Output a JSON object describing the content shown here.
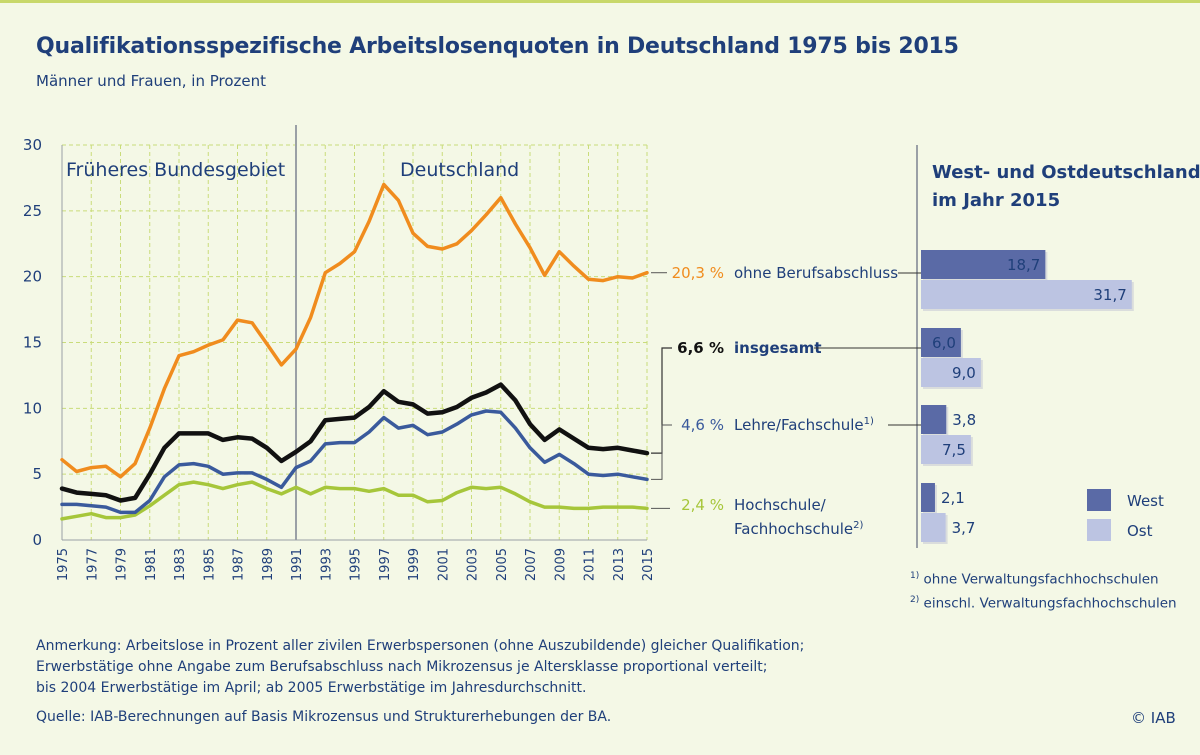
{
  "title": "Qualifikationsspezifische Arbeitslosenquoten in Deutschland 1975 bis 2015",
  "subtitle": "Männer und Frauen, in Prozent",
  "region_labels": {
    "west": "Früheres Bundesgebiet",
    "unified": "Deutschland"
  },
  "right_panel_title": [
    "West- und Ostdeutschland",
    "im Jahr 2015"
  ],
  "colors": {
    "ohne": "#f08c1e",
    "insgesamt": "#111111",
    "lehre": "#3a5a9c",
    "hochschule": "#a6c63a",
    "west": "#5a6aa6",
    "ost": "#bcc4e2",
    "grid": "#c9dc7a",
    "text": "#1f3f7a"
  },
  "chart_data": [
    {
      "type": "line",
      "xlabel": "",
      "ylabel": "",
      "ylim": [
        0,
        30
      ],
      "yticks": [
        0,
        5,
        10,
        15,
        20,
        25,
        30
      ],
      "x": [
        1975,
        1976,
        1977,
        1978,
        1979,
        1980,
        1981,
        1982,
        1983,
        1984,
        1985,
        1986,
        1987,
        1988,
        1989,
        1990,
        1991,
        1992,
        1993,
        1994,
        1995,
        1996,
        1997,
        1998,
        1999,
        2000,
        2001,
        2002,
        2003,
        2004,
        2005,
        2006,
        2007,
        2008,
        2009,
        2010,
        2011,
        2012,
        2013,
        2014,
        2015
      ],
      "xtick_labels": [
        "1975",
        "1977",
        "1979",
        "1981",
        "1983",
        "1985",
        "1987",
        "1989",
        "1991",
        "1993",
        "1995",
        "1997",
        "1999",
        "2001",
        "2003",
        "2005",
        "2007",
        "2009",
        "2011",
        "2013",
        "2015"
      ],
      "grid": true,
      "series": [
        {
          "name": "ohne Berufsabschluss",
          "end_label": "20,3 %",
          "values": [
            6.1,
            5.2,
            5.5,
            5.6,
            4.8,
            5.8,
            8.5,
            11.5,
            14.0,
            14.3,
            14.8,
            15.2,
            16.7,
            16.5,
            14.9,
            13.3,
            14.5,
            16.9,
            20.3,
            21.0,
            21.9,
            24.2,
            27.0,
            25.8,
            23.3,
            22.3,
            22.1,
            22.5,
            23.5,
            24.7,
            26.0,
            24.0,
            22.2,
            20.1,
            21.9,
            20.8,
            19.8,
            19.7,
            20.0,
            19.9,
            20.3
          ]
        },
        {
          "name": "insgesamt",
          "end_label": "6,6 %",
          "values": [
            3.9,
            3.6,
            3.5,
            3.4,
            3.0,
            3.2,
            5.0,
            7.0,
            8.1,
            8.1,
            8.1,
            7.6,
            7.8,
            7.7,
            7.0,
            6.0,
            6.7,
            7.5,
            9.1,
            9.2,
            9.3,
            10.1,
            11.3,
            10.5,
            10.3,
            9.6,
            9.7,
            10.1,
            10.8,
            11.2,
            11.8,
            10.6,
            8.8,
            7.6,
            8.4,
            7.7,
            7.0,
            6.9,
            7.0,
            6.8,
            6.6
          ]
        },
        {
          "name": "Lehre/Fachschule",
          "end_label": "4,6 %",
          "values": [
            2.7,
            2.7,
            2.6,
            2.5,
            2.1,
            2.1,
            3.0,
            4.8,
            5.7,
            5.8,
            5.6,
            5.0,
            5.1,
            5.1,
            4.6,
            4.0,
            5.5,
            6.0,
            7.3,
            7.4,
            7.4,
            8.2,
            9.3,
            8.5,
            8.7,
            8.0,
            8.2,
            8.8,
            9.5,
            9.8,
            9.7,
            8.5,
            7.0,
            5.9,
            6.5,
            5.8,
            5.0,
            4.9,
            5.0,
            4.8,
            4.6
          ]
        },
        {
          "name": "Hochschule/ Fachhochschule",
          "end_label": "2,4 %",
          "values": [
            1.6,
            1.8,
            2.0,
            1.7,
            1.7,
            1.9,
            2.6,
            3.4,
            4.2,
            4.4,
            4.2,
            3.9,
            4.2,
            4.4,
            3.9,
            3.5,
            4.0,
            3.5,
            4.0,
            3.9,
            3.9,
            3.7,
            3.9,
            3.4,
            3.4,
            2.9,
            3.0,
            3.6,
            4.0,
            3.9,
            4.0,
            3.5,
            2.9,
            2.5,
            2.5,
            2.4,
            2.4,
            2.5,
            2.5,
            2.5,
            2.4
          ]
        }
      ],
      "series_labels": [
        {
          "key": "ohne",
          "value_label": "20,3 %",
          "text": "ohne Berufsabschluss",
          "sup": ""
        },
        {
          "key": "insgesamt",
          "value_label": "6,6 %",
          "text": "insgesamt",
          "sup": ""
        },
        {
          "key": "lehre",
          "value_label": "4,6 %",
          "text": "Lehre/Fachschule",
          "sup": "1)"
        },
        {
          "key": "hochschule",
          "value_label": "2,4 %",
          "text": "Hochschule/",
          "text2": "Fachhochschule",
          "sup": "2)"
        }
      ]
    },
    {
      "type": "bar",
      "orientation": "horizontal",
      "title": "West- und Ostdeutschland im Jahr 2015",
      "categories": [
        "ohne Berufsabschluss",
        "insgesamt",
        "Lehre/Fachschule",
        "Hochschule/Fachhochschule"
      ],
      "series": [
        {
          "name": "West",
          "values": [
            18.7,
            6.0,
            3.8,
            2.1
          ],
          "labels": [
            "18,7",
            "6,0",
            "3,8",
            "2,1"
          ]
        },
        {
          "name": "Ost",
          "values": [
            31.7,
            9.0,
            7.5,
            3.7
          ],
          "labels": [
            "31,7",
            "9,0",
            "7,5",
            "3,7"
          ]
        }
      ],
      "legend": "bottom-right"
    }
  ],
  "footnotes": [
    {
      "sup": "1)",
      "text": "ohne Verwaltungsfachhochschulen"
    },
    {
      "sup": "2)",
      "text": "einschl. Verwaltungsfachhochschulen"
    }
  ],
  "note_lines": [
    "Anmerkung: Arbeitslose in Prozent aller zivilen Erwerbspersonen (ohne Auszubildende) gleicher Qualifikation;",
    "Erwerbstätige ohne Angabe zum Berufsabschluss nach Mikrozensus je Altersklasse proportional verteilt;",
    "bis 2004 Erwerbstätige im April; ab 2005 Erwerbstätige im Jahresdurchschnitt."
  ],
  "source": "Quelle: IAB-Berechnungen auf Basis Mikrozensus und Strukturerhebungen der BA.",
  "copyright": "© IAB"
}
